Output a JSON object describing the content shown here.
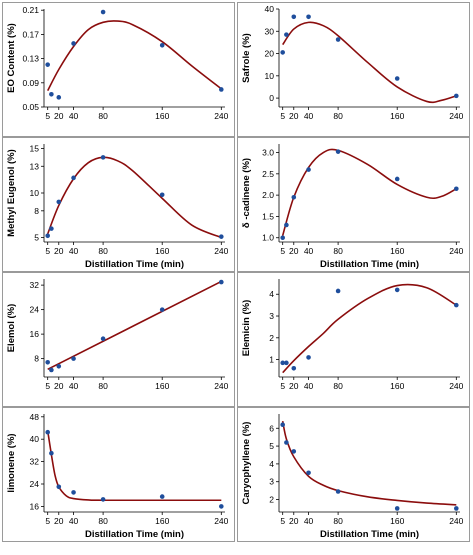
{
  "colors": {
    "point": "#1f4e9c",
    "curve": "#8b0d0d",
    "axis": "#000000",
    "frame": "#9a9a9a"
  },
  "chart_data": [
    {
      "type": "scatter",
      "xlabel": "",
      "ylabel": "EO Content (%)",
      "xticks": [
        5,
        20,
        40,
        80,
        160,
        240
      ],
      "yticks": [
        "0.05",
        "0.09",
        "0.13",
        "0.17",
        "0.21"
      ],
      "xlim": [
        0,
        245
      ],
      "ylim": [
        0.05,
        0.212
      ],
      "points": [
        [
          5,
          0.12
        ],
        [
          10,
          0.071
        ],
        [
          20,
          0.066
        ],
        [
          40,
          0.155
        ],
        [
          80,
          0.207
        ],
        [
          160,
          0.152
        ],
        [
          240,
          0.079
        ]
      ],
      "fit": [
        [
          5,
          0.077
        ],
        [
          20,
          0.112
        ],
        [
          40,
          0.15
        ],
        [
          60,
          0.178
        ],
        [
          80,
          0.19
        ],
        [
          100,
          0.192
        ],
        [
          120,
          0.186
        ],
        [
          160,
          0.158
        ],
        [
          200,
          0.118
        ],
        [
          240,
          0.08
        ]
      ]
    },
    {
      "type": "scatter",
      "xlabel": "",
      "ylabel": "Safrole (%)",
      "xticks": [
        5,
        20,
        40,
        80,
        160,
        240
      ],
      "yticks": [
        "0",
        "10",
        "20",
        "30",
        "40"
      ],
      "xlim": [
        0,
        245
      ],
      "ylim": [
        -4,
        40
      ],
      "points": [
        [
          5,
          20.5
        ],
        [
          10,
          28.5
        ],
        [
          20,
          36.5
        ],
        [
          40,
          36.5
        ],
        [
          80,
          26.3
        ],
        [
          160,
          8.8
        ],
        [
          240,
          1
        ]
      ],
      "fit": [
        [
          5,
          24
        ],
        [
          20,
          31
        ],
        [
          40,
          34
        ],
        [
          60,
          32.5
        ],
        [
          80,
          28
        ],
        [
          120,
          16
        ],
        [
          160,
          5
        ],
        [
          200,
          -1.5
        ],
        [
          220,
          -1
        ],
        [
          240,
          1
        ]
      ]
    },
    {
      "type": "scatter",
      "xlabel": "Distillation Time (min)",
      "ylabel": "Methyl Eugenol (%)",
      "xticks": [
        5,
        20,
        40,
        80,
        160,
        240
      ],
      "yticks": [
        "5",
        "8",
        "10",
        "13",
        "15"
      ],
      "xlim": [
        0,
        245
      ],
      "ylim": [
        4.5,
        15.5
      ],
      "points": [
        [
          5,
          5.2
        ],
        [
          10,
          6.0
        ],
        [
          20,
          9.0
        ],
        [
          40,
          11.7
        ],
        [
          80,
          14.0
        ],
        [
          160,
          9.8
        ],
        [
          240,
          5.1
        ]
      ],
      "fit": [
        [
          5,
          5.4
        ],
        [
          20,
          8.6
        ],
        [
          40,
          11.6
        ],
        [
          60,
          13.4
        ],
        [
          80,
          14.0
        ],
        [
          100,
          13.6
        ],
        [
          120,
          12.5
        ],
        [
          160,
          9.4
        ],
        [
          200,
          6.4
        ],
        [
          240,
          5.0
        ]
      ]
    },
    {
      "type": "scatter",
      "xlabel": "Distillation Time (min)",
      "ylabel": "δ -cadinene (%)",
      "xticks": [
        5,
        20,
        40,
        80,
        160,
        240
      ],
      "yticks": [
        "1.0",
        "1.5",
        "2.0",
        "2.5",
        "3.0"
      ],
      "xlim": [
        0,
        245
      ],
      "ylim": [
        0.9,
        3.2
      ],
      "points": [
        [
          5,
          1.0
        ],
        [
          10,
          1.3
        ],
        [
          20,
          1.95
        ],
        [
          40,
          2.6
        ],
        [
          80,
          3.02
        ],
        [
          160,
          2.38
        ],
        [
          240,
          2.15
        ]
      ],
      "fit": [
        [
          5,
          1.05
        ],
        [
          20,
          1.95
        ],
        [
          40,
          2.65
        ],
        [
          60,
          3.0
        ],
        [
          80,
          3.05
        ],
        [
          120,
          2.72
        ],
        [
          160,
          2.25
        ],
        [
          200,
          1.95
        ],
        [
          220,
          1.97
        ],
        [
          240,
          2.15
        ]
      ]
    },
    {
      "type": "scatter",
      "xlabel": "",
      "ylabel": "Elemol (%)",
      "xticks": [
        5,
        20,
        40,
        80,
        160,
        240
      ],
      "yticks": [
        "8",
        "16",
        "24",
        "32"
      ],
      "xlim": [
        0,
        245
      ],
      "ylim": [
        2,
        34
      ],
      "points": [
        [
          5,
          6.8
        ],
        [
          10,
          4.3
        ],
        [
          20,
          5.5
        ],
        [
          40,
          8.0
        ],
        [
          80,
          14.5
        ],
        [
          160,
          24.0
        ],
        [
          240,
          33.0
        ]
      ],
      "fit": [
        [
          5,
          4.5
        ],
        [
          240,
          33.2
        ]
      ]
    },
    {
      "type": "scatter",
      "xlabel": "",
      "ylabel": "Elemicin (%)",
      "xticks": [
        5,
        20,
        40,
        80,
        160,
        240
      ],
      "yticks": [
        "1",
        "2",
        "3",
        "4"
      ],
      "xlim": [
        0,
        245
      ],
      "ylim": [
        0.2,
        4.7
      ],
      "points": [
        [
          5,
          0.85
        ],
        [
          10,
          0.85
        ],
        [
          20,
          0.6
        ],
        [
          40,
          1.1
        ],
        [
          80,
          4.15
        ],
        [
          160,
          4.2
        ],
        [
          240,
          3.5
        ]
      ],
      "fit": [
        [
          5,
          0.4
        ],
        [
          20,
          0.95
        ],
        [
          40,
          1.6
        ],
        [
          60,
          2.2
        ],
        [
          80,
          2.85
        ],
        [
          120,
          3.8
        ],
        [
          160,
          4.4
        ],
        [
          200,
          4.3
        ],
        [
          240,
          3.5
        ]
      ]
    },
    {
      "type": "scatter",
      "xlabel": "Distillation Time (min)",
      "ylabel": "limonene (%)",
      "xticks": [
        5,
        20,
        40,
        80,
        160,
        240
      ],
      "yticks": [
        "16",
        "24",
        "32",
        "40",
        "48"
      ],
      "xlim": [
        0,
        245
      ],
      "ylim": [
        14,
        49
      ],
      "points": [
        [
          5,
          42.5
        ],
        [
          10,
          35
        ],
        [
          20,
          23
        ],
        [
          40,
          21
        ],
        [
          80,
          18.5
        ],
        [
          160,
          19.5
        ],
        [
          240,
          16
        ]
      ],
      "fit": [
        [
          5,
          43
        ],
        [
          10,
          34.5
        ],
        [
          15,
          27
        ],
        [
          20,
          23
        ],
        [
          30,
          19.8
        ],
        [
          40,
          18.8
        ],
        [
          60,
          18.3
        ],
        [
          80,
          18.2
        ],
        [
          160,
          18.2
        ],
        [
          240,
          18.2
        ]
      ]
    },
    {
      "type": "scatter",
      "xlabel": "Distillation Time (min)",
      "ylabel": "Caryophyllene (%)",
      "xticks": [
        5,
        20,
        40,
        80,
        160,
        240
      ],
      "yticks": [
        "2",
        "3",
        "4",
        "5",
        "6"
      ],
      "xlim": [
        0,
        245
      ],
      "ylim": [
        1.3,
        6.8
      ],
      "points": [
        [
          5,
          6.2
        ],
        [
          10,
          5.2
        ],
        [
          20,
          4.7
        ],
        [
          40,
          3.5
        ],
        [
          80,
          2.45
        ],
        [
          160,
          1.5
        ],
        [
          240,
          1.5
        ]
      ],
      "fit": [
        [
          5,
          6.4
        ],
        [
          10,
          5.4
        ],
        [
          20,
          4.4
        ],
        [
          40,
          3.3
        ],
        [
          60,
          2.8
        ],
        [
          80,
          2.5
        ],
        [
          120,
          2.15
        ],
        [
          160,
          1.95
        ],
        [
          200,
          1.8
        ],
        [
          240,
          1.7
        ]
      ]
    }
  ]
}
